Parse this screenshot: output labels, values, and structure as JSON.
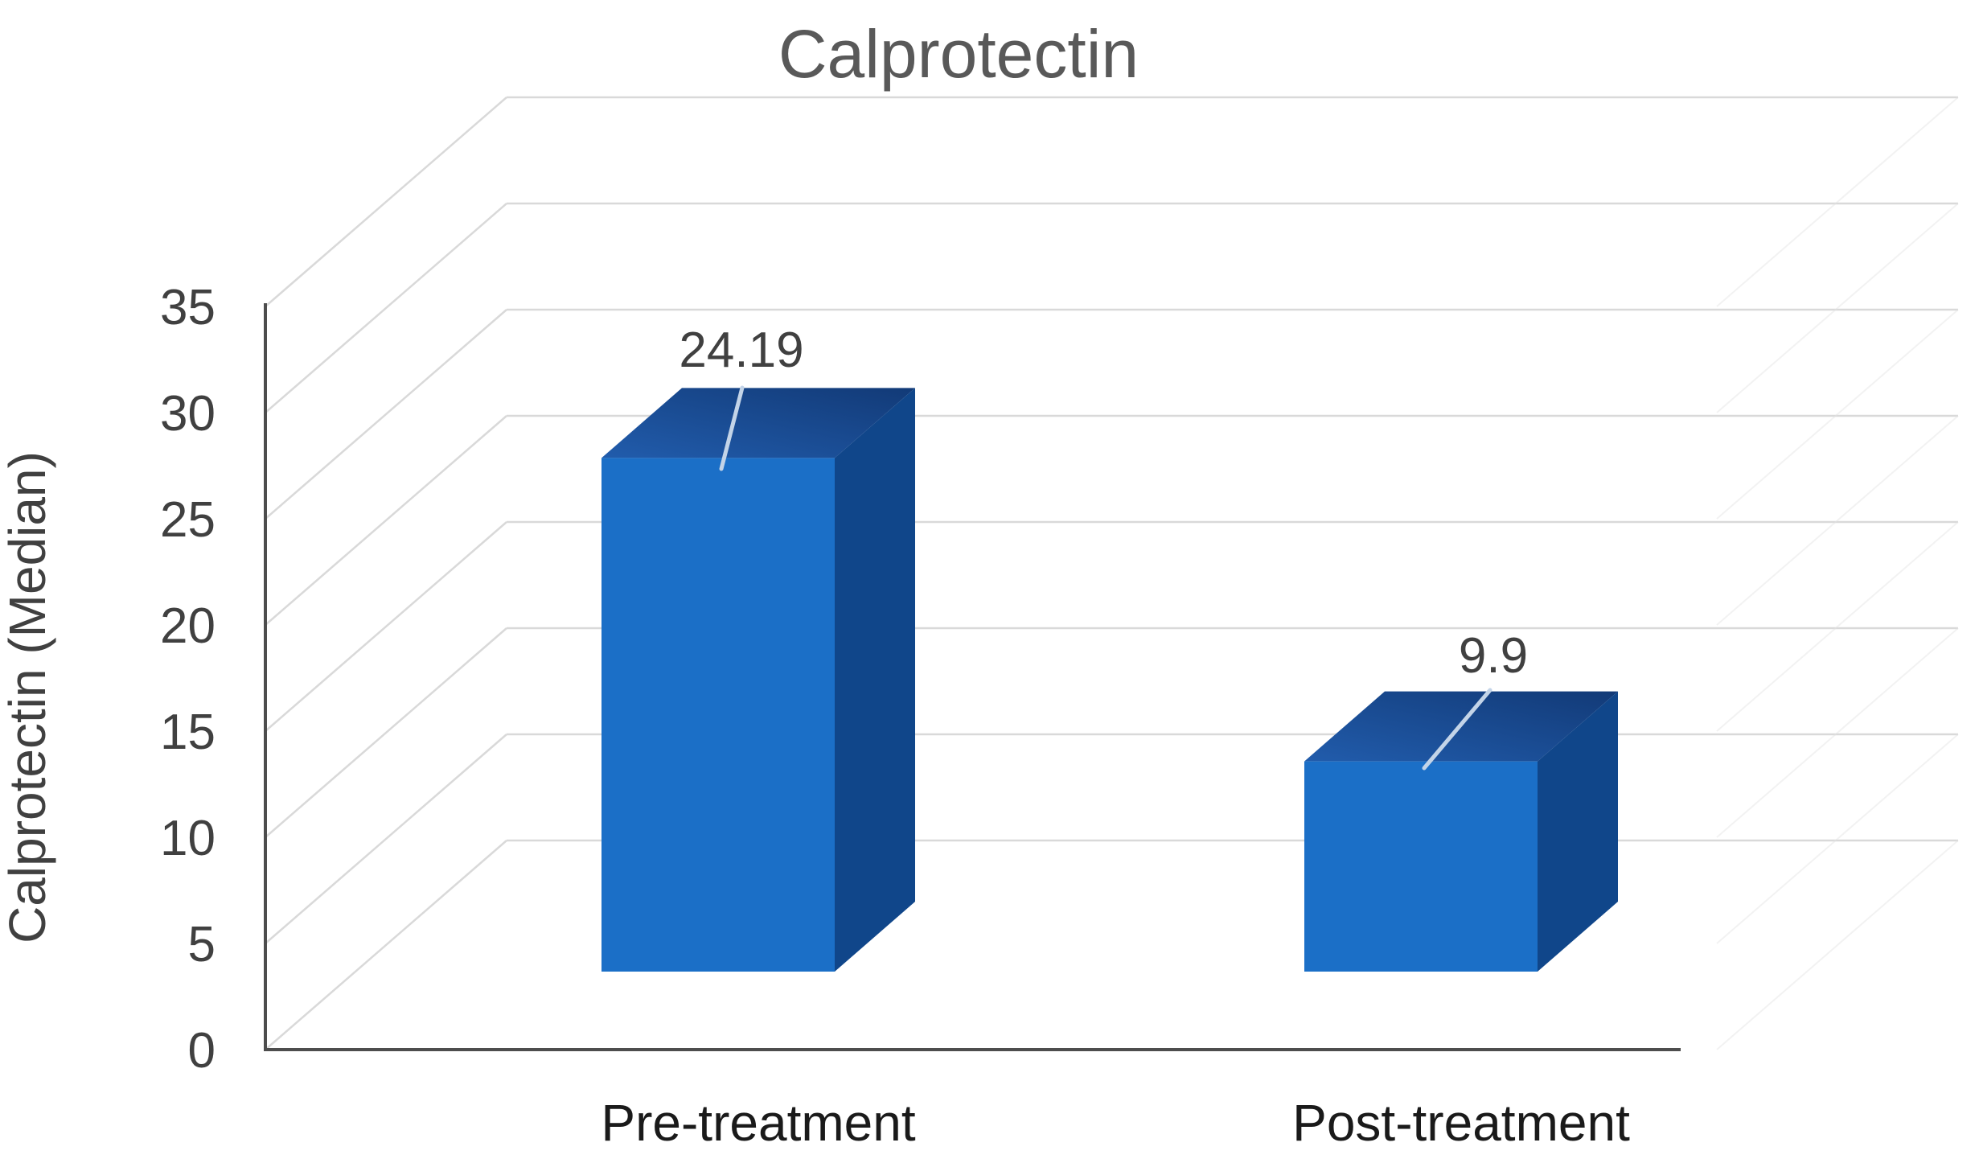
{
  "chart_data": {
    "type": "bar",
    "projection": "3d-column",
    "title": "Calprotectin",
    "ylabel": "Calprotectin (Median)",
    "xlabel": "",
    "categories": [
      "Pre-treatment",
      "Post-treatment"
    ],
    "values": [
      24.19,
      9.9
    ],
    "data_labels": [
      "24.19",
      "9.9"
    ],
    "ylim": [
      0,
      35
    ],
    "ytick_step": 5,
    "yticks": [
      0,
      5,
      10,
      15,
      20,
      25,
      30,
      35
    ],
    "grid": true,
    "legend": false,
    "colors": {
      "background": "#FFFFFF",
      "bar_front": "#1B6FC7",
      "bar_side": "#10468A",
      "bar_top_light": "#215CAC",
      "bar_top_dark": "#123A77",
      "gridline": "#D9D9D9",
      "sidewall_gridline": "#E3E3E3",
      "axis_line": "#4D4D4D",
      "title_text": "#595959",
      "axis_title_text": "#404040",
      "tick_text": "#404040",
      "category_text": "#1A1A1A",
      "data_label_text": "#404040",
      "leader_line": "#C3D4E8"
    }
  }
}
